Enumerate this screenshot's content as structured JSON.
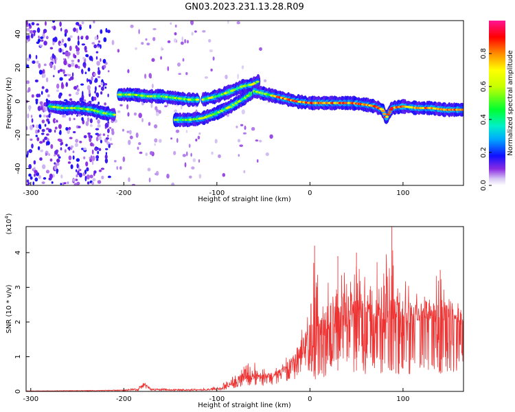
{
  "title": "GN03.2023.231.13.28.R09",
  "chart_data": [
    {
      "type": "heatmap",
      "xlabel": "Height of straight line (km)",
      "ylabel": "Frequency (Hz)",
      "xlim": [
        -305,
        165
      ],
      "ylim": [
        -50,
        48
      ],
      "xticks": [
        -300,
        -200,
        -100,
        0,
        100
      ],
      "yticks": [
        -40,
        -20,
        0,
        20,
        40
      ],
      "colorbar": {
        "label": "Normalized spectral amplitude",
        "range": [
          0,
          1
        ],
        "ticks": [
          0.0,
          0.2,
          0.4,
          0.6,
          0.8
        ]
      },
      "ridge": {
        "segments": [
          {
            "x": [
              -280,
              -265,
              -250,
              -235,
              -222,
              -210
            ],
            "y": [
              -3,
              -4,
              -4,
              -5,
              -7,
              -8
            ]
          },
          {
            "x": [
              -205,
              -190,
              -175,
              -160,
              -145,
              -130,
              -120
            ],
            "y": [
              4,
              4,
              3,
              3,
              2,
              1,
              1
            ]
          },
          {
            "x": [
              -145,
              -130,
              -115,
              -100,
              -85,
              -70,
              -60
            ],
            "y": [
              -11,
              -11,
              -10,
              -7,
              -3,
              2,
              6
            ]
          },
          {
            "x": [
              -115,
              -100,
              -85,
              -72,
              -62,
              -55
            ],
            "y": [
              1,
              3,
              6,
              9,
              10,
              12
            ]
          },
          {
            "x": [
              -60,
              -45,
              -30,
              -15,
              0,
              15,
              30,
              45,
              60,
              70,
              78,
              82,
              88,
              100,
              115,
              130,
              145,
              160,
              165
            ],
            "y": [
              6,
              4,
              2,
              0,
              -1,
              -1,
              -1,
              -1,
              -2,
              -3,
              -5,
              -10,
              -4,
              -3,
              -4,
              -4,
              -5,
              -5,
              -5
            ]
          }
        ]
      }
    },
    {
      "type": "line",
      "xlabel": "Height of straight line (km)",
      "ylabel": "SNR (10 * v/v)",
      "y_multiplier": "(x10",
      "y_exponent": "4",
      "y_multiplier_close": ")",
      "xlim": [
        -305,
        165
      ],
      "ylim": [
        0,
        4.75
      ],
      "xticks": [
        -300,
        -200,
        -100,
        0,
        100
      ],
      "yticks": [
        0,
        1,
        2,
        3,
        4
      ],
      "series": [
        {
          "color": "#ee3333",
          "envelope_x": [
            -305,
            -250,
            -200,
            -185,
            -178,
            -170,
            -150,
            -120,
            -100,
            -90,
            -80,
            -70,
            -60,
            -50,
            -40,
            -30,
            -20,
            -10,
            0,
            5,
            10,
            20,
            30,
            40,
            50,
            60,
            70,
            80,
            88,
            90,
            95,
            100,
            110,
            120,
            130,
            140,
            150,
            160,
            165
          ],
          "envelope_y": [
            0.02,
            0.03,
            0.05,
            0.12,
            0.28,
            0.1,
            0.08,
            0.07,
            0.15,
            0.3,
            0.5,
            0.8,
            0.9,
            0.7,
            0.6,
            0.8,
            1.2,
            1.7,
            2.6,
            4.2,
            3.2,
            3.5,
            3.9,
            3.6,
            4.0,
            3.7,
            3.8,
            3.9,
            4.75,
            4.0,
            3.0,
            3.3,
            3.0,
            2.7,
            3.3,
            3.5,
            2.8,
            2.6,
            2.2
          ],
          "mean_y": [
            0.01,
            0.02,
            0.03,
            0.05,
            0.18,
            0.05,
            0.04,
            0.04,
            0.06,
            0.1,
            0.2,
            0.35,
            0.4,
            0.35,
            0.4,
            0.5,
            0.7,
            0.9,
            1.1,
            1.3,
            1.5,
            1.7,
            1.9,
            1.9,
            2.0,
            2.0,
            2.0,
            2.0,
            2.0,
            2.0,
            1.9,
            1.9,
            2.0,
            2.0,
            2.0,
            2.0,
            2.0,
            1.9,
            1.8
          ]
        }
      ]
    }
  ]
}
